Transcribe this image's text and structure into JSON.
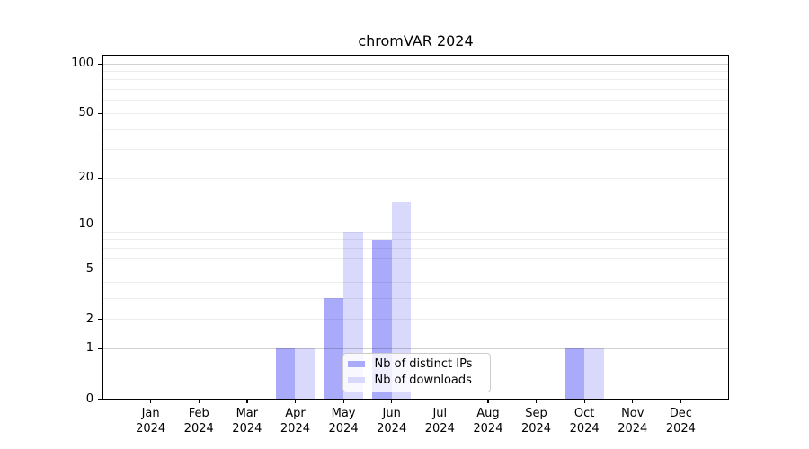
{
  "figure": {
    "title": "chromVAR 2024"
  },
  "chart_data": {
    "type": "bar",
    "title": "chromVAR 2024",
    "categories": [
      "Jan 2024",
      "Feb 2024",
      "Mar 2024",
      "Apr 2024",
      "May 2024",
      "Jun 2024",
      "Jul 2024",
      "Aug 2024",
      "Sep 2024",
      "Oct 2024",
      "Nov 2024",
      "Dec 2024"
    ],
    "series": [
      {
        "name": "Nb of distinct IPs",
        "color": "#aaaafb",
        "values": [
          0,
          0,
          0,
          1,
          3,
          8,
          0,
          0,
          0,
          1,
          0,
          0
        ]
      },
      {
        "name": "Nb of downloads",
        "color": "#d9d9fb",
        "values": [
          0,
          0,
          0,
          1,
          9,
          14,
          0,
          0,
          0,
          1,
          0,
          0
        ]
      }
    ],
    "y_scale": "log1p",
    "y_ticks": [
      0,
      1,
      2,
      5,
      10,
      20,
      50,
      100
    ],
    "ylim": [
      0,
      114
    ],
    "xlabel": "",
    "ylabel": "",
    "grid": "horizontal-over-bars",
    "legend_position": "inside-bottom-center",
    "colors": {
      "major_grid": "#cccccc",
      "minor_grid": "#ececec",
      "axis": "#000000",
      "background": "#ffffff"
    }
  }
}
